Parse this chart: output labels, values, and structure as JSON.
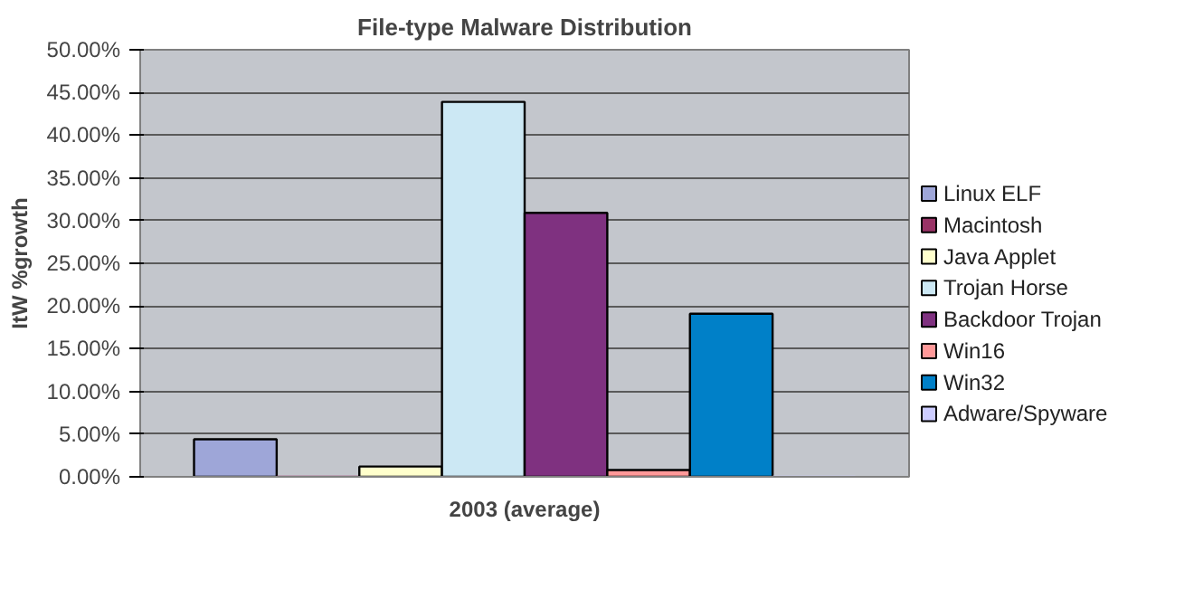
{
  "chart_data": {
    "type": "bar",
    "title": "File-type Malware Distribution",
    "xlabel": "2003 (average)",
    "ylabel": "ItW %growth",
    "categories": [
      null
    ],
    "series": [
      {
        "name": "Linux ELF",
        "color": "#9ea6d8",
        "values": [
          4.4
        ]
      },
      {
        "name": "Macintosh",
        "color": "#993366",
        "values": [
          0
        ]
      },
      {
        "name": "Java Applet",
        "color": "#ffffcc",
        "values": [
          1.2
        ]
      },
      {
        "name": "Trojan Horse",
        "color": "#cce8f4",
        "values": [
          43.9
        ]
      },
      {
        "name": "Backdoor Trojan",
        "color": "#7f3180",
        "values": [
          30.9
        ]
      },
      {
        "name": "Win16",
        "color": "#ff9999",
        "values": [
          0.8
        ]
      },
      {
        "name": "Win32",
        "color": "#0080c8",
        "values": [
          19.1
        ]
      },
      {
        "name": "Adware/Spyware",
        "color": "#ccccff",
        "values": [
          0
        ]
      }
    ],
    "ylim": [
      0,
      50
    ],
    "yticks": [
      {
        "value": 0,
        "label": "0.00%"
      },
      {
        "value": 5,
        "label": "5.00%"
      },
      {
        "value": 10,
        "label": "10.00%"
      },
      {
        "value": 15,
        "label": "15.00%"
      },
      {
        "value": 20,
        "label": "20.00%"
      },
      {
        "value": 25,
        "label": "25.00%"
      },
      {
        "value": 30,
        "label": "30.00%"
      },
      {
        "value": 35,
        "label": "35.00%"
      },
      {
        "value": 40,
        "label": "40.00%"
      },
      {
        "value": 45,
        "label": "45.00%"
      },
      {
        "value": 50,
        "label": "50.00%"
      }
    ],
    "grid": "y",
    "legend": "right"
  }
}
